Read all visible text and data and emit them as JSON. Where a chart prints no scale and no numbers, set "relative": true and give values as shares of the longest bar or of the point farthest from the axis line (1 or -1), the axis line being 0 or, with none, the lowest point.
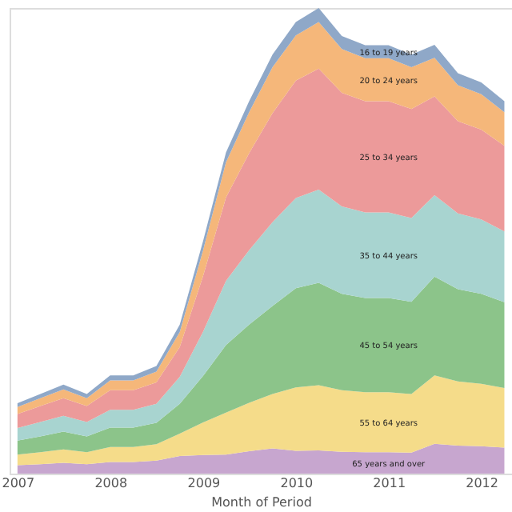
{
  "chart_data": {
    "type": "area",
    "stacked": true,
    "relative": true,
    "xlabel": "Month of Period",
    "legend": false,
    "grid": false,
    "x": [
      "2007-01",
      "2007-04",
      "2007-07",
      "2007-10",
      "2008-01",
      "2008-04",
      "2008-07",
      "2008-10",
      "2009-01",
      "2009-04",
      "2009-07",
      "2009-10",
      "2010-01",
      "2010-04",
      "2010-07",
      "2010-10",
      "2011-01",
      "2011-04",
      "2011-07",
      "2011-10",
      "2012-01",
      "2012-04"
    ],
    "xlim": [
      "2006-12",
      "2012-05"
    ],
    "xticks": [
      "2007",
      "2008",
      "2009",
      "2010",
      "2011",
      "2012"
    ],
    "series": [
      {
        "name": "65 years and over",
        "color": "#c7a6cf",
        "values": [
          0.018,
          0.02,
          0.023,
          0.02,
          0.025,
          0.025,
          0.028,
          0.038,
          0.04,
          0.041,
          0.048,
          0.054,
          0.049,
          0.05,
          0.047,
          0.046,
          0.046,
          0.045,
          0.064,
          0.06,
          0.059,
          0.056
        ]
      },
      {
        "name": "55 to 64 years",
        "color": "#f5dc8a",
        "values": [
          0.023,
          0.026,
          0.029,
          0.026,
          0.032,
          0.032,
          0.035,
          0.048,
          0.07,
          0.09,
          0.104,
          0.117,
          0.136,
          0.14,
          0.132,
          0.129,
          0.129,
          0.126,
          0.147,
          0.138,
          0.134,
          0.128
        ]
      },
      {
        "name": "45 to 54 years",
        "color": "#8cc48a",
        "values": [
          0.03,
          0.034,
          0.038,
          0.034,
          0.042,
          0.042,
          0.046,
          0.064,
          0.1,
          0.145,
          0.168,
          0.189,
          0.213,
          0.22,
          0.207,
          0.202,
          0.202,
          0.198,
          0.212,
          0.198,
          0.193,
          0.184
        ]
      },
      {
        "name": "35 to 44 years",
        "color": "#a8d4d0",
        "values": [
          0.027,
          0.031,
          0.034,
          0.031,
          0.038,
          0.038,
          0.041,
          0.058,
          0.095,
          0.138,
          0.16,
          0.18,
          0.194,
          0.2,
          0.188,
          0.184,
          0.184,
          0.18,
          0.175,
          0.163,
          0.16,
          0.152
        ]
      },
      {
        "name": "25 to 34 years",
        "color": "#ec9a9a",
        "values": [
          0.03,
          0.034,
          0.038,
          0.034,
          0.042,
          0.042,
          0.046,
          0.064,
          0.12,
          0.179,
          0.208,
          0.234,
          0.252,
          0.26,
          0.244,
          0.239,
          0.239,
          0.234,
          0.212,
          0.198,
          0.193,
          0.184
        ]
      },
      {
        "name": "20 to 24 years",
        "color": "#f5b77a",
        "values": [
          0.015,
          0.017,
          0.019,
          0.017,
          0.021,
          0.021,
          0.023,
          0.032,
          0.055,
          0.076,
          0.088,
          0.099,
          0.097,
          0.1,
          0.094,
          0.092,
          0.092,
          0.09,
          0.083,
          0.077,
          0.076,
          0.072
        ]
      },
      {
        "name": "16 to 19 years",
        "color": "#8fa8c8",
        "values": [
          0.008,
          0.009,
          0.01,
          0.009,
          0.011,
          0.011,
          0.012,
          0.016,
          0.02,
          0.021,
          0.024,
          0.027,
          0.029,
          0.03,
          0.028,
          0.028,
          0.028,
          0.027,
          0.028,
          0.026,
          0.025,
          0.024
        ]
      }
    ]
  }
}
